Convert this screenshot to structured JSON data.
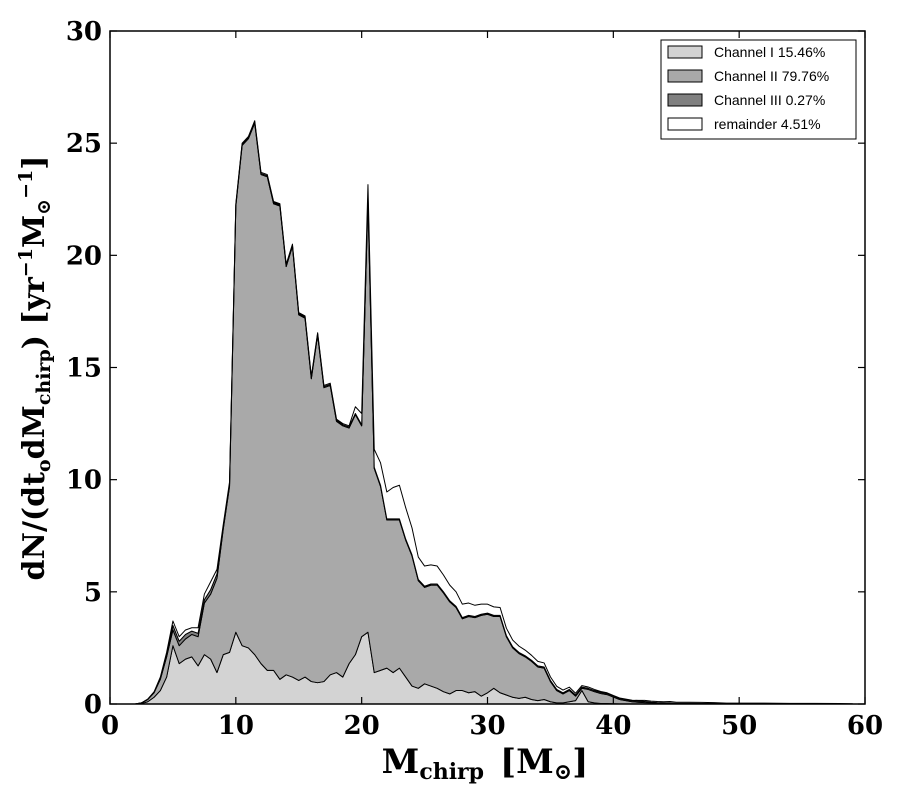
{
  "chart_data": {
    "type": "area",
    "xlabel": "M",
    "xlabel_sub": "chirp",
    "xlabel_unit": "[M",
    "xlabel_unit_sub": "⊙",
    "xlabel_unit_close": "]",
    "ylabel": "dN/(dt",
    "ylabel_sub1": "o",
    "ylabel_mid": "dM",
    "ylabel_sub2": "chirp",
    "ylabel_unit": ") [yr",
    "ylabel_sup1": "−1",
    "ylabel_unit2": "M",
    "ylabel_sub3": "⊙",
    "ylabel_sup2": "−1",
    "ylabel_close": "]",
    "xlim": [
      0,
      60
    ],
    "ylim": [
      0,
      30
    ],
    "xticks": [
      0,
      10,
      20,
      30,
      40,
      50,
      60
    ],
    "yticks": [
      0,
      5,
      10,
      15,
      20,
      25,
      30
    ],
    "legend_position": "upper right",
    "stacked": true,
    "x": [
      2.0,
      2.5,
      3.0,
      3.5,
      4.0,
      4.5,
      5.0,
      5.5,
      6.0,
      6.5,
      7.0,
      7.5,
      8.0,
      8.5,
      9.0,
      9.5,
      10.0,
      10.5,
      11.0,
      11.5,
      12.0,
      12.5,
      13.0,
      13.5,
      14.0,
      14.5,
      15.0,
      15.5,
      16.0,
      16.5,
      17.0,
      17.5,
      18.0,
      18.5,
      19.0,
      19.5,
      20.0,
      20.5,
      21.0,
      21.5,
      22.0,
      22.5,
      23.0,
      23.5,
      24.0,
      24.5,
      25.0,
      25.5,
      26.0,
      26.5,
      27.0,
      27.5,
      28.0,
      28.5,
      29.0,
      29.5,
      30.0,
      30.5,
      31.0,
      31.5,
      32.0,
      32.5,
      33.0,
      33.5,
      34.0,
      34.5,
      35.0,
      35.5,
      36.0,
      36.5,
      37.0,
      37.5,
      38.0,
      38.5,
      39.0,
      39.5,
      40.0,
      40.5,
      41.0,
      41.5,
      42.0,
      42.5,
      43.0,
      43.5,
      44.0,
      44.5,
      45.0,
      46.0,
      47.0,
      48.0,
      49.0,
      50.0,
      52.0,
      54.0,
      56.0,
      58.0,
      59.0
    ],
    "series": [
      {
        "name": "Channel I 15.46%",
        "color": "#d3d3d3",
        "values": [
          0,
          0.02,
          0.1,
          0.3,
          0.6,
          1.2,
          2.6,
          1.8,
          2.0,
          2.1,
          1.7,
          2.2,
          2.0,
          1.4,
          2.2,
          2.3,
          3.2,
          2.6,
          2.5,
          2.2,
          1.8,
          1.5,
          1.5,
          1.1,
          1.3,
          1.2,
          1.05,
          1.2,
          1.0,
          0.95,
          1.0,
          1.3,
          1.4,
          1.2,
          1.8,
          2.2,
          3.0,
          3.2,
          1.4,
          1.5,
          1.6,
          1.4,
          1.6,
          1.2,
          0.8,
          0.7,
          0.9,
          0.8,
          0.7,
          0.55,
          0.45,
          0.6,
          0.6,
          0.5,
          0.55,
          0.35,
          0.5,
          0.7,
          0.5,
          0.4,
          0.3,
          0.25,
          0.3,
          0.2,
          0.15,
          0.2,
          0.1,
          0.05,
          0.05,
          0.1,
          0.15,
          0.6,
          0.1,
          0.05,
          0.02,
          0.02,
          0.01,
          0,
          0,
          0,
          0,
          0,
          0,
          0,
          0,
          0,
          0,
          0,
          0,
          0,
          0,
          0,
          0,
          0,
          0,
          0,
          0
        ]
      },
      {
        "name": "Channel II 79.76%",
        "color": "#a9a9a9",
        "values": [
          0,
          0.03,
          0.1,
          0.2,
          0.5,
          0.9,
          0.7,
          0.8,
          0.9,
          1.0,
          1.3,
          2.3,
          2.9,
          4.2,
          5.6,
          7.4,
          19.0,
          22.3,
          22.7,
          23.7,
          21.8,
          22.0,
          20.8,
          21.1,
          18.2,
          19.2,
          16.3,
          16.0,
          13.5,
          15.5,
          13.1,
          12.9,
          11.2,
          11.2,
          10.5,
          10.7,
          9.4,
          19.3,
          9.1,
          8.2,
          6.6,
          6.8,
          6.6,
          6.1,
          5.8,
          4.8,
          4.3,
          4.5,
          4.6,
          4.4,
          4.1,
          3.7,
          3.2,
          3.4,
          3.3,
          3.6,
          3.5,
          3.2,
          3.4,
          2.6,
          2.2,
          2.0,
          1.8,
          1.7,
          1.5,
          1.4,
          0.9,
          0.55,
          0.4,
          0.5,
          0.2,
          0.1,
          0.55,
          0.5,
          0.45,
          0.4,
          0.3,
          0.2,
          0.15,
          0.1,
          0.08,
          0.06,
          0.05,
          0.04,
          0.03,
          0.03,
          0.02,
          0.02,
          0.01,
          0.01,
          0,
          0,
          0,
          0,
          0,
          0,
          0
        ]
      },
      {
        "name": "Channel III 0.27%",
        "color": "#808080",
        "values": [
          0,
          0,
          0.01,
          0.02,
          0.05,
          0.1,
          0.2,
          0.2,
          0.2,
          0.15,
          0.15,
          0.15,
          0.2,
          0.2,
          0.1,
          0.1,
          0.05,
          0.05,
          0.05,
          0.05,
          0.05,
          0.05,
          0.05,
          0.05,
          0.05,
          0.05,
          0.05,
          0.05,
          0.05,
          0.05,
          0.05,
          0.05,
          0.05,
          0.05,
          0.05,
          0.05,
          0.05,
          0.05,
          0.05,
          0.05,
          0.05,
          0.05,
          0.05,
          0.05,
          0.05,
          0.05,
          0.05,
          0.05,
          0.05,
          0.05,
          0.05,
          0.05,
          0.05,
          0.05,
          0.05,
          0.05,
          0.05,
          0.05,
          0.05,
          0.05,
          0.05,
          0.05,
          0.05,
          0.05,
          0.05,
          0.05,
          0.05,
          0.05,
          0.05,
          0.05,
          0.05,
          0.05,
          0.05,
          0.05,
          0.05,
          0.05,
          0.05,
          0.05,
          0.05,
          0.05,
          0.05,
          0.05,
          0.03,
          0.02,
          0.02,
          0.02,
          0.01,
          0.01,
          0.01,
          0.01,
          0,
          0,
          0,
          0,
          0,
          0,
          0
        ]
      },
      {
        "name": "remainder 4.51%",
        "color": "#ffffff",
        "values": [
          0,
          0,
          0.01,
          0.02,
          0.05,
          0.1,
          0.2,
          0.2,
          0.2,
          0.15,
          0.25,
          0.25,
          0.35,
          0.2,
          0.1,
          0.1,
          0.05,
          0.05,
          0.05,
          0.05,
          0.05,
          0.05,
          0.05,
          0.05,
          0.05,
          0.05,
          0.05,
          0.05,
          0.05,
          0.05,
          0.05,
          0.05,
          0.05,
          0.05,
          0.05,
          0.3,
          0.5,
          0.6,
          0.8,
          1.0,
          1.2,
          1.4,
          1.5,
          1.4,
          1.2,
          1.0,
          0.9,
          0.85,
          0.8,
          0.75,
          0.7,
          0.65,
          0.6,
          0.55,
          0.5,
          0.45,
          0.4,
          0.38,
          0.35,
          0.33,
          0.3,
          0.28,
          0.25,
          0.22,
          0.2,
          0.18,
          0.16,
          0.14,
          0.12,
          0.1,
          0.08,
          0.07,
          0.06,
          0.05,
          0.04,
          0.03,
          0.02,
          0.02,
          0.02,
          0.02,
          0.03,
          0.05,
          0.05,
          0.05,
          0.05,
          0.06,
          0.05,
          0.05,
          0.05,
          0.04,
          0.04,
          0.04,
          0.04,
          0.03,
          0.03,
          0.02,
          0.01
        ]
      }
    ]
  }
}
